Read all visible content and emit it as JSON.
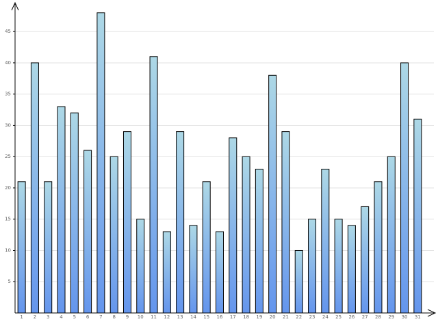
{
  "chart_data": {
    "type": "bar",
    "categories": [
      "1",
      "2",
      "3",
      "4",
      "5",
      "6",
      "7",
      "8",
      "9",
      "10",
      "11",
      "12",
      "13",
      "14",
      "15",
      "16",
      "17",
      "18",
      "19",
      "20",
      "21",
      "22",
      "23",
      "24",
      "25",
      "26",
      "27",
      "28",
      "29",
      "30",
      "31"
    ],
    "values": [
      21,
      40,
      21,
      33,
      32,
      26,
      48,
      25,
      29,
      15,
      41,
      13,
      29,
      14,
      21,
      13,
      28,
      25,
      23,
      38,
      29,
      10,
      15,
      23,
      15,
      14,
      17,
      21,
      25,
      40,
      31
    ],
    "color": "#6495ed",
    "ylim": [
      0,
      49.5
    ],
    "yticks": [
      5,
      10,
      15,
      20,
      25,
      30,
      35,
      40,
      45
    ],
    "grid": true
  }
}
